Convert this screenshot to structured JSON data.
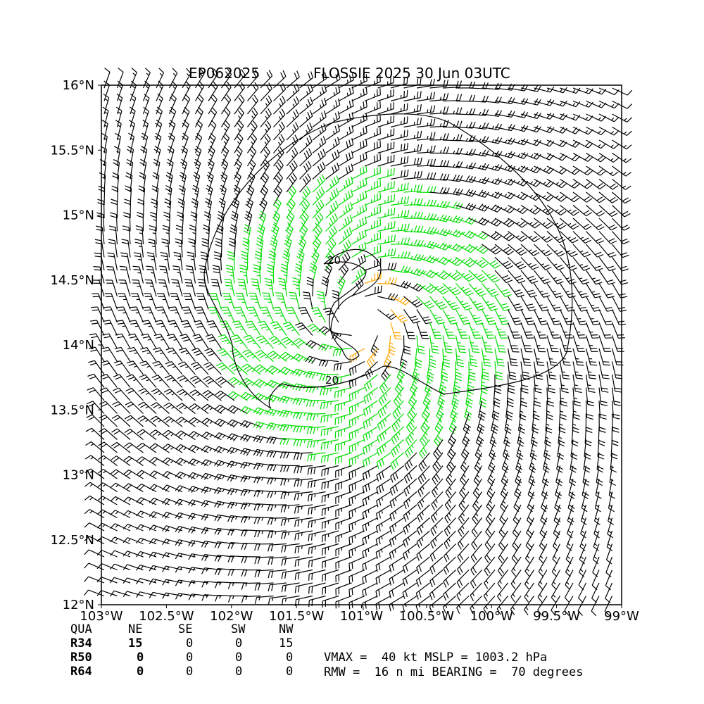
{
  "title": {
    "storm_id": "EP062025",
    "name_time": "FLOSSIE 2025 30 Jun 03UTC"
  },
  "map": {
    "lon_range": [
      -103,
      -99
    ],
    "lat_range": [
      12,
      16
    ],
    "lat_ticks": [
      "12°N",
      "12.5°N",
      "13°N",
      "13.5°N",
      "14°N",
      "14.5°N",
      "15°N",
      "15.5°N",
      "16°N"
    ],
    "lon_ticks": [
      "103°W",
      "102.5°W",
      "102°W",
      "101.5°W",
      "101°W",
      "100.5°W",
      "100°W",
      "99.5°W",
      "99°W"
    ],
    "storm_center": {
      "lon": -101.0,
      "lat": 14.2
    },
    "contour_labels": [
      "20",
      "20"
    ],
    "colors": {
      "barb_low": "#000000",
      "barb_34kt": "#00dd00",
      "barb_50kt": "#ffa500",
      "contour": "#000000"
    }
  },
  "wind_radii": {
    "headers": [
      "QUA",
      "NE",
      "SE",
      "SW",
      "NW"
    ],
    "rows": [
      {
        "label": "R34",
        "values": [
          "15",
          "0",
          "0",
          "15"
        ]
      },
      {
        "label": "R50",
        "values": [
          "0",
          "0",
          "0",
          "0"
        ]
      },
      {
        "label": "R64",
        "values": [
          "0",
          "0",
          "0",
          "0"
        ]
      }
    ]
  },
  "stats": {
    "line1": "VMAX =  40 kt MSLP = 1003.2 hPa",
    "line2": "RMW =  16 n mi BEARING =  70 degrees"
  }
}
